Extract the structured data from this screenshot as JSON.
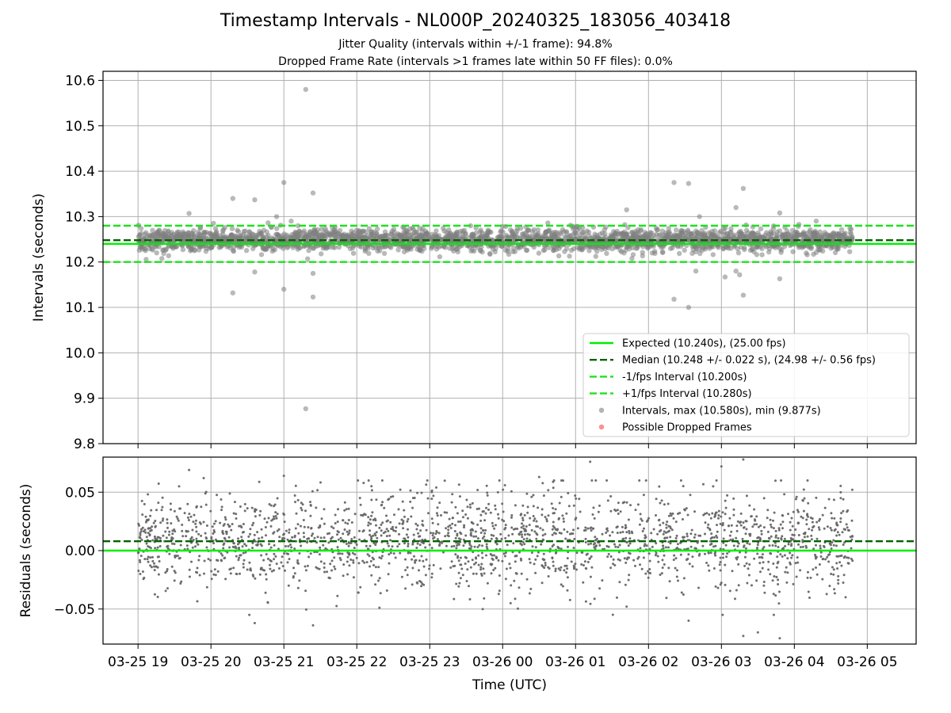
{
  "title": "Timestamp Intervals - NL000P_20240325_183056_403418",
  "subtitles": [
    "Jitter Quality (intervals within +/-1 frame): 94.8%",
    "Dropped Frame Rate (intervals >1 frames late within 50 FF files): 0.0%"
  ],
  "colors": {
    "expected": "#00ee00",
    "median": "#006400",
    "fps_interval": "#1fe01f",
    "points": "#808080",
    "dropped": "#ff4444",
    "grid": "#b0b0b0"
  },
  "chart_data": [
    {
      "type": "scatter",
      "panel": "top",
      "ylabel": "Intervals (seconds)",
      "ylim": [
        9.8,
        10.62
      ],
      "yticks": [
        9.8,
        9.9,
        10.0,
        10.1,
        10.2,
        10.3,
        10.4,
        10.5,
        10.6
      ],
      "ytick_labels": [
        "9.8",
        "9.9",
        "10.0",
        "10.1",
        "10.2",
        "10.3",
        "10.4",
        "10.5",
        "10.6"
      ],
      "xlim_hours": [
        18.52,
        29.67
      ],
      "x_range_hours": [
        19.0,
        28.8
      ],
      "grid": true,
      "reference_lines": [
        {
          "label": "Expected (10.240s), (25.00 fps)",
          "value": 10.24,
          "style": "solid",
          "color": "#00ee00"
        },
        {
          "label": "Median (10.248 +/- 0.022 s), (24.98 +/- 0.56 fps)",
          "value": 10.248,
          "style": "dashed",
          "color": "#006400"
        },
        {
          "label": "-1/fps Interval (10.200s)",
          "value": 10.2,
          "style": "dashed",
          "color": "#1fe01f"
        },
        {
          "label": "+1/fps Interval (10.280s)",
          "value": 10.28,
          "style": "dashed",
          "color": "#1fe01f"
        }
      ],
      "series": [
        {
          "label": "Intervals, max (10.580s), min (9.877s)",
          "marker": "circle",
          "color": "#808080"
        },
        {
          "label": "Possible Dropped Frames",
          "marker": "circle",
          "color": "#ff4444"
        }
      ],
      "legend": "lower-right",
      "band": {
        "center": 10.248,
        "spread": 0.022
      },
      "outliers": [
        [
          21.3,
          10.58
        ],
        [
          21.3,
          9.877
        ],
        [
          20.3,
          10.34
        ],
        [
          20.6,
          10.337
        ],
        [
          20.3,
          10.132
        ],
        [
          20.6,
          10.178
        ],
        [
          21.0,
          10.375
        ],
        [
          21.0,
          10.14
        ],
        [
          21.4,
          10.352
        ],
        [
          21.4,
          10.175
        ],
        [
          21.4,
          10.123
        ],
        [
          21.1,
          10.29
        ],
        [
          20.9,
          10.3
        ],
        [
          25.7,
          10.315
        ],
        [
          26.35,
          10.375
        ],
        [
          26.55,
          10.373
        ],
        [
          26.35,
          10.118
        ],
        [
          26.55,
          10.1
        ],
        [
          26.65,
          10.18
        ],
        [
          27.3,
          10.362
        ],
        [
          27.3,
          10.127
        ],
        [
          27.2,
          10.32
        ],
        [
          27.2,
          10.18
        ],
        [
          27.05,
          10.167
        ],
        [
          27.8,
          10.163
        ],
        [
          27.8,
          10.308
        ],
        [
          27.25,
          10.172
        ],
        [
          26.7,
          10.3
        ],
        [
          28.3,
          10.29
        ],
        [
          19.7,
          10.307
        ]
      ]
    },
    {
      "type": "scatter",
      "panel": "bottom",
      "ylabel": "Residuals (seconds)",
      "xlabel": "Time (UTC)",
      "ylim": [
        -0.08,
        0.08
      ],
      "yticks": [
        -0.05,
        0.0,
        0.05
      ],
      "ytick_labels": [
        "−0.05",
        "0.00",
        "0.05"
      ],
      "xlim_hours": [
        18.52,
        29.67
      ],
      "x_range_hours": [
        19.0,
        28.8
      ],
      "xticks_hours": [
        19,
        20,
        21,
        22,
        23,
        24,
        25,
        26,
        27,
        28,
        29
      ],
      "xtick_labels": [
        "03-25 19",
        "03-25 20",
        "03-25 21",
        "03-25 22",
        "03-25 23",
        "03-26 00",
        "03-26 01",
        "03-26 02",
        "03-26 03",
        "03-26 04",
        "03-26 05"
      ],
      "grid": true,
      "reference_lines": [
        {
          "value": 0.008,
          "style": "dashed",
          "color": "#006400"
        },
        {
          "value": 0.0,
          "style": "solid",
          "color": "#00ee00"
        }
      ],
      "series": [
        {
          "marker": "dot",
          "color": "#666666"
        }
      ],
      "band": {
        "center": 0.008,
        "spread": 0.022
      },
      "outliers": [
        [
          19.7,
          0.069
        ],
        [
          20.6,
          -0.062
        ],
        [
          21.4,
          -0.064
        ],
        [
          25.2,
          0.076
        ],
        [
          27.3,
          0.078
        ],
        [
          27.3,
          -0.073
        ],
        [
          27.8,
          -0.075
        ],
        [
          27.5,
          -0.07
        ],
        [
          25.7,
          -0.048
        ],
        [
          21.0,
          0.064
        ],
        [
          26.55,
          -0.06
        ],
        [
          19.9,
          0.062
        ],
        [
          24.5,
          0.063
        ],
        [
          27.0,
          0.072
        ]
      ]
    }
  ]
}
